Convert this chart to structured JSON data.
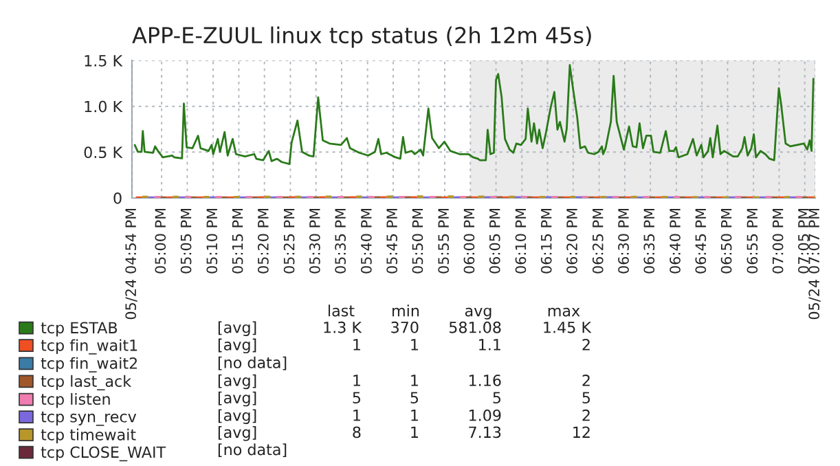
{
  "chart_data": {
    "type": "line",
    "title": "APP-E-ZUUL linux tcp status (2h 12m 45s)",
    "xlim": [
      16.904,
      19.117
    ],
    "ylim": [
      0,
      1500
    ],
    "xticks": [
      {
        "value": 16.904,
        "label": "05/24 04:54 PM"
      },
      {
        "value": 17,
        "label": "05:00 PM"
      },
      {
        "value": 17.083,
        "label": "05:05 PM"
      },
      {
        "value": 17.167,
        "label": "05:10 PM"
      },
      {
        "value": 17.25,
        "label": "05:15 PM"
      },
      {
        "value": 17.333,
        "label": "05:20 PM"
      },
      {
        "value": 17.417,
        "label": "05:25 PM"
      },
      {
        "value": 17.5,
        "label": "05:30 PM"
      },
      {
        "value": 17.583,
        "label": "05:35 PM"
      },
      {
        "value": 17.667,
        "label": "05:40 PM"
      },
      {
        "value": 17.75,
        "label": "05:45 PM"
      },
      {
        "value": 17.833,
        "label": "05:50 PM"
      },
      {
        "value": 17.917,
        "label": "05:55 PM"
      },
      {
        "value": 18,
        "label": "06:00 PM"
      },
      {
        "value": 18.083,
        "label": "06:05 PM"
      },
      {
        "value": 18.167,
        "label": "06:10 PM"
      },
      {
        "value": 18.25,
        "label": "06:15 PM"
      },
      {
        "value": 18.333,
        "label": "06:20 PM"
      },
      {
        "value": 18.417,
        "label": "06:25 PM"
      },
      {
        "value": 18.5,
        "label": "06:30 PM"
      },
      {
        "value": 18.583,
        "label": "06:35 PM"
      },
      {
        "value": 18.667,
        "label": "06:40 PM"
      },
      {
        "value": 18.75,
        "label": "06:45 PM"
      },
      {
        "value": 18.833,
        "label": "06:50 PM"
      },
      {
        "value": 18.917,
        "label": "06:55 PM"
      },
      {
        "value": 19,
        "label": "07:00 PM"
      },
      {
        "value": 19.083,
        "label": "07:05 PM"
      },
      {
        "value": 19.117,
        "label": "05/24 07:07 PM"
      }
    ],
    "yticks": [
      0,
      {
        "value": 500,
        "label": "0.5 K"
      },
      {
        "value": 1000,
        "label": "1.0 K"
      },
      {
        "value": 1500,
        "label": "1.5 K"
      }
    ],
    "grid": true,
    "legend": "bottom",
    "bands": [
      {
        "axis": "x",
        "from": 18,
        "to": 19.117,
        "color": "#ebebeb"
      }
    ],
    "series": [
      {
        "name": "tcp ESTAB",
        "color": "#2a7a1a",
        "x": [
          16.913,
          16.923,
          16.935,
          16.939,
          16.945,
          16.972,
          16.979,
          16.99,
          17.004,
          17.034,
          17.041,
          17.066,
          17.072,
          17.081,
          17.1,
          17.118,
          17.126,
          17.152,
          17.162,
          17.167,
          17.182,
          17.189,
          17.204,
          17.214,
          17.23,
          17.241,
          17.27,
          17.3,
          17.307,
          17.329,
          17.347,
          17.356,
          17.374,
          17.389,
          17.414,
          17.421,
          17.44,
          17.455,
          17.477,
          17.492,
          17.507,
          17.522,
          17.544,
          17.581,
          17.6,
          17.61,
          17.64,
          17.669,
          17.691,
          17.702,
          17.711,
          17.728,
          17.758,
          17.773,
          17.782,
          17.79,
          17.81,
          17.82,
          17.839,
          17.847,
          17.864,
          17.876,
          17.898,
          17.916,
          17.935,
          17.965,
          17.994,
          18.009,
          18.024,
          18.031,
          18.05,
          18.056,
          18.065,
          18.076,
          18.083,
          18.09,
          18.101,
          18.112,
          18.127,
          18.139,
          18.149,
          18.164,
          18.179,
          18.186,
          18.198,
          18.206,
          18.216,
          18.223,
          18.234,
          18.245,
          18.26,
          18.272,
          18.282,
          18.29,
          18.305,
          18.312,
          18.322,
          18.331,
          18.346,
          18.356,
          18.371,
          18.381,
          18.401,
          18.415,
          18.426,
          18.43,
          18.438,
          18.445,
          18.455,
          18.464,
          18.474,
          18.497,
          18.514,
          18.526,
          18.538,
          18.548,
          18.559,
          18.57,
          18.585,
          18.593,
          18.615,
          18.633,
          18.644,
          18.659,
          18.666,
          18.674,
          18.703,
          18.721,
          18.733,
          18.748,
          18.755,
          18.77,
          18.777,
          18.785,
          18.8,
          18.81,
          18.822,
          18.839,
          18.851,
          18.866,
          18.881,
          18.888,
          18.898,
          18.91,
          18.918,
          18.925,
          18.94,
          18.955,
          18.969,
          18.984,
          18.999,
          19.006,
          19.021,
          19.036,
          19.058,
          19.08,
          19.091,
          19.099,
          19.105,
          19.111
        ],
        "values": [
          578,
          503,
          503,
          730,
          503,
          493,
          563,
          503,
          443,
          463,
          443,
          433,
          1031,
          553,
          543,
          679,
          543,
          513,
          579,
          478,
          644,
          503,
          719,
          463,
          644,
          478,
          453,
          478,
          427,
          412,
          513,
          402,
          427,
          392,
          370,
          604,
          845,
          503,
          463,
          453,
          1097,
          629,
          594,
          579,
          654,
          543,
          493,
          463,
          503,
          644,
          478,
          493,
          443,
          428,
          664,
          493,
          513,
          478,
          528,
          463,
          976,
          654,
          543,
          614,
          513,
          478,
          478,
          443,
          428,
          412,
          412,
          744,
          478,
          493,
          1288,
          1353,
          1107,
          644,
          528,
          493,
          594,
          579,
          644,
          976,
          614,
          815,
          594,
          745,
          543,
          714,
          986,
          1157,
          745,
          830,
          614,
          755,
          1450,
          1227,
          880,
          543,
          563,
          493,
          478,
          503,
          563,
          478,
          543,
          664,
          830,
          1333,
          830,
          528,
          780,
          563,
          553,
          815,
          543,
          679,
          679,
          503,
          493,
          730,
          513,
          513,
          553,
          443,
          478,
          644,
          463,
          579,
          443,
          513,
          654,
          443,
          790,
          478,
          513,
          478,
          453,
          453,
          543,
          664,
          463,
          543,
          694,
          443,
          513,
          478,
          428,
          412,
          1197,
          1036,
          594,
          563,
          579,
          594,
          528,
          629,
          513,
          1300
        ]
      },
      {
        "name": "tcp fin_wait1",
        "color": "#f04e23",
        "line_style": "dashed",
        "x": [
          16.917,
          17.233,
          17.567,
          17.9,
          18.233,
          18.567,
          18.9,
          19.117
        ],
        "values": [
          1,
          1,
          2,
          1,
          1,
          1,
          1,
          1
        ]
      },
      {
        "name": "tcp fin_wait2",
        "color": "#3a7ca5"
      },
      {
        "name": "tcp last_ack",
        "color": "#a0582a",
        "line_style": "dashed",
        "x": [
          16.917,
          17.233,
          17.567,
          17.9,
          18.233,
          18.567,
          18.9,
          19.117
        ],
        "values": [
          1,
          1,
          1,
          2,
          1,
          1,
          1,
          1
        ]
      },
      {
        "name": "tcp listen",
        "color": "#f07cb0",
        "line_style": "dashed",
        "x": [
          16.917,
          17.233,
          17.567,
          17.9,
          18.233,
          18.567,
          18.9,
          19.117
        ],
        "values": [
          5,
          5,
          5,
          5,
          5,
          5,
          5,
          5
        ]
      },
      {
        "name": "tcp syn_recv",
        "color": "#7b68dd",
        "line_style": "dashed",
        "x": [
          16.917,
          17.233,
          17.567,
          17.9,
          18.233,
          18.567,
          18.9,
          19.117
        ],
        "values": [
          1,
          1,
          1,
          1,
          2,
          1,
          1,
          1
        ]
      },
      {
        "name": "tcp timewait",
        "color": "#b8972a",
        "line_style": "dashed",
        "x": [
          16.917,
          17.233,
          17.567,
          17.9,
          18.233,
          18.567,
          18.9,
          19.117
        ],
        "values": [
          8,
          6,
          9,
          12,
          5,
          7,
          1,
          8
        ]
      },
      {
        "name": "tcp CLOSE_WAIT",
        "color": "#6b2a3a"
      }
    ],
    "annotations": [
      "last",
      "min",
      "avg",
      "max",
      "[avg]",
      "1.3 K",
      "370",
      "581.08",
      "1.45 K",
      "[avg]",
      "1",
      "1",
      "1.1",
      "2",
      "[no data]",
      "[avg]",
      "1",
      "1",
      "1.16",
      "2",
      "[avg]",
      "5",
      "5",
      "5",
      "5",
      "[avg]",
      "1",
      "1",
      "1.09",
      "2",
      "[avg]",
      "8",
      "1",
      "7.13",
      "12",
      "[no data]"
    ]
  }
}
